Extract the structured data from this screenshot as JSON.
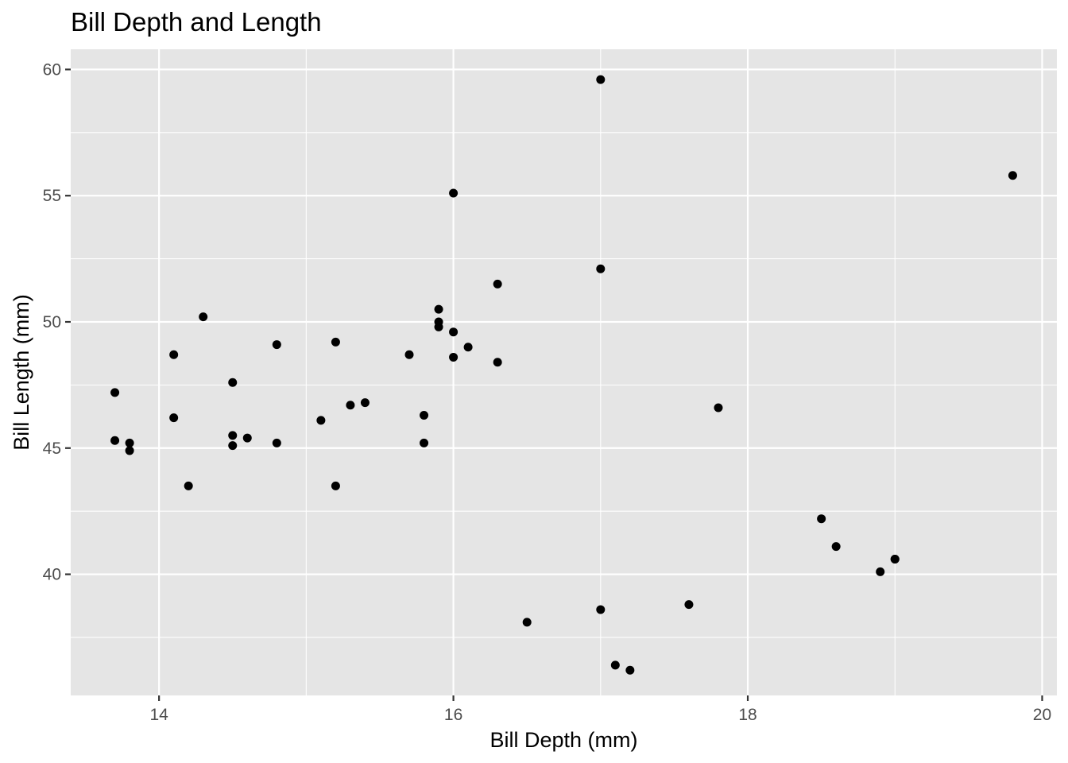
{
  "chart_data": {
    "type": "scatter",
    "title": "Bill Depth and Length",
    "xlabel": "Bill Depth (mm)",
    "ylabel": "Bill Length (mm)",
    "xlim": [
      13.4,
      20.1
    ],
    "ylim": [
      35.2,
      60.8
    ],
    "x_ticks": [
      14,
      16,
      18,
      20
    ],
    "y_ticks": [
      40,
      45,
      50,
      55,
      60
    ],
    "x_ticks_labels": [
      "14",
      "16",
      "18",
      "20"
    ],
    "y_ticks_labels": [
      "40",
      "45",
      "50",
      "55",
      "60"
    ],
    "grid": true,
    "panel_color": "#e5e5e5",
    "point_color": "#000000",
    "points": [
      {
        "x": 13.7,
        "y": 47.2
      },
      {
        "x": 13.7,
        "y": 45.3
      },
      {
        "x": 13.8,
        "y": 45.2
      },
      {
        "x": 13.8,
        "y": 44.9
      },
      {
        "x": 14.1,
        "y": 48.7
      },
      {
        "x": 14.1,
        "y": 46.2
      },
      {
        "x": 14.2,
        "y": 43.5
      },
      {
        "x": 14.3,
        "y": 50.2
      },
      {
        "x": 14.5,
        "y": 47.6
      },
      {
        "x": 14.5,
        "y": 45.5
      },
      {
        "x": 14.5,
        "y": 45.1
      },
      {
        "x": 14.6,
        "y": 45.4
      },
      {
        "x": 14.8,
        "y": 49.1
      },
      {
        "x": 14.8,
        "y": 45.2
      },
      {
        "x": 15.1,
        "y": 46.1
      },
      {
        "x": 15.2,
        "y": 49.2
      },
      {
        "x": 15.2,
        "y": 43.5
      },
      {
        "x": 15.3,
        "y": 46.7
      },
      {
        "x": 15.4,
        "y": 46.8
      },
      {
        "x": 15.7,
        "y": 48.7
      },
      {
        "x": 15.8,
        "y": 46.3
      },
      {
        "x": 15.8,
        "y": 45.2
      },
      {
        "x": 15.9,
        "y": 50.5
      },
      {
        "x": 15.9,
        "y": 50.0
      },
      {
        "x": 15.9,
        "y": 49.8
      },
      {
        "x": 16.0,
        "y": 55.1
      },
      {
        "x": 16.0,
        "y": 49.6
      },
      {
        "x": 16.0,
        "y": 48.6
      },
      {
        "x": 16.1,
        "y": 49.0
      },
      {
        "x": 16.3,
        "y": 51.5
      },
      {
        "x": 16.3,
        "y": 48.4
      },
      {
        "x": 16.5,
        "y": 38.1
      },
      {
        "x": 17.0,
        "y": 59.6
      },
      {
        "x": 17.0,
        "y": 52.1
      },
      {
        "x": 17.0,
        "y": 38.6
      },
      {
        "x": 17.1,
        "y": 36.4
      },
      {
        "x": 17.2,
        "y": 36.2
      },
      {
        "x": 17.6,
        "y": 38.8
      },
      {
        "x": 17.8,
        "y": 46.6
      },
      {
        "x": 18.5,
        "y": 42.2
      },
      {
        "x": 18.6,
        "y": 41.1
      },
      {
        "x": 18.9,
        "y": 40.1
      },
      {
        "x": 19.0,
        "y": 40.6
      },
      {
        "x": 19.0,
        "y": 40.6
      },
      {
        "x": 19.8,
        "y": 55.8
      }
    ]
  }
}
